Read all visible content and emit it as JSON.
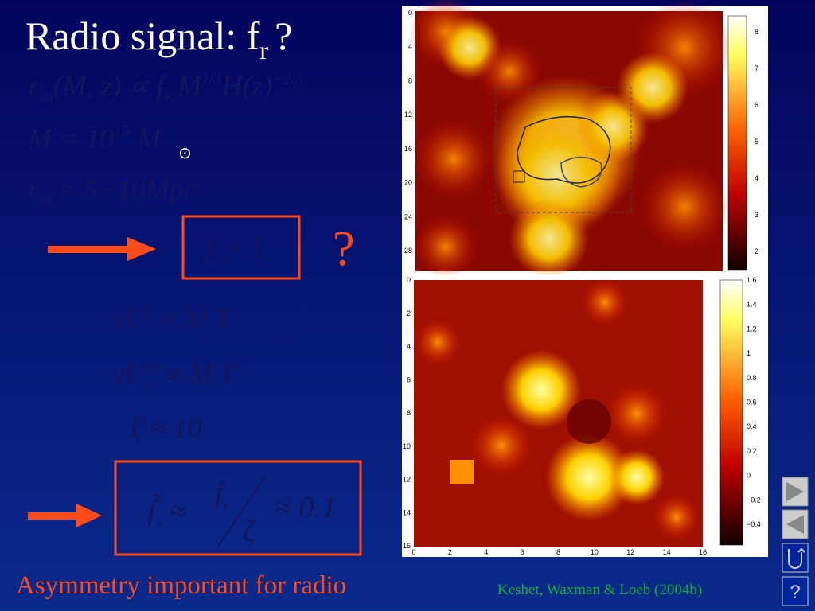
{
  "title": {
    "main": "Radio signal: f",
    "sub": "r",
    "end": "?"
  },
  "equations": [
    [
      {
        "t": "r"
      },
      {
        "sub": "sh"
      },
      {
        "t": "(M, z) ∝ f"
      },
      {
        "sub": "r"
      },
      {
        "t": " M"
      },
      {
        "sup": "1/3"
      },
      {
        "t": "H(z)"
      },
      {
        "sup": "−2/3"
      }
    ],
    [
      {
        "t": "M = 10"
      },
      {
        "sup": "15"
      },
      {
        "t": " M"
      }
    ],
    [
      {
        "t": "r"
      },
      {
        "sub": "sh"
      },
      {
        "t": " ≈ 5−10Mpc"
      }
    ]
  ],
  "sun_symbol": "⊙",
  "box1": [
    {
      "t": "f"
    },
    {
      "sub": "r"
    },
    {
      "t": " ≈ 1"
    }
  ],
  "question_mark": "?",
  "equations2": [
    [
      {
        "t": "νL"
      },
      {
        "sup": "IC"
      },
      {
        "sub": "ν"
      },
      {
        "t": " ∝ Ṁ T"
      }
    ],
    [
      {
        "t": "νL"
      },
      {
        "sup": "syn"
      },
      {
        "sub": "ν"
      },
      {
        "t": " ∝ Ṁ T"
      },
      {
        "sup": "2"
      }
    ],
    [
      {
        "t": "ζ ≈ 10"
      }
    ]
  ],
  "box2": {
    "left": [
      {
        "t": "f̃"
      },
      {
        "sub": "r"
      },
      {
        "t": " ≈"
      }
    ],
    "numerator": [
      {
        "t": "f"
      },
      {
        "sub": "r"
      }
    ],
    "denominator": [
      {
        "t": "ζ"
      }
    ],
    "right": [
      {
        "t": "≈ 0.1"
      }
    ]
  },
  "footer": "Asymmetry important for radio",
  "credit": "Keshet, Waxman & Loeb (2004b)",
  "top_map": {
    "yticks": [
      "0",
      "4",
      "8",
      "12",
      "16",
      "20",
      "24",
      "28"
    ],
    "colorbar_ticks": [
      "8",
      "7",
      "6",
      "5",
      "4",
      "3",
      "2"
    ]
  },
  "bottom_map": {
    "yticks": [
      "0",
      "2",
      "4",
      "6",
      "8",
      "10",
      "12",
      "14",
      "16"
    ],
    "xticks": [
      "0",
      "2",
      "4",
      "6",
      "8",
      "10",
      "12",
      "14",
      "16"
    ],
    "colorbar_ticks": [
      "1.6",
      "1.4",
      "1.2",
      "1",
      "0.8",
      "0.6",
      "0.4",
      "0.2",
      "0",
      "−0.2",
      "−0.4"
    ]
  },
  "nav_help": "?"
}
